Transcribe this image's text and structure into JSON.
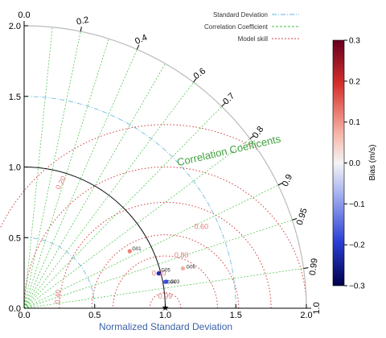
{
  "chart_data": {
    "type": "scatter",
    "subtype": "taylor-diagram",
    "title": "",
    "xlabel": "Normalized Standard Deviation",
    "corr_axis_label": "Correlation Coefficents",
    "std_range": [
      0,
      2.0
    ],
    "std_ticks": [
      "0.0",
      "0.5",
      "1.0",
      "1.5",
      "2.0"
    ],
    "corr_ticks": [
      "0.0",
      "0.2",
      "0.4",
      "0.6",
      "0.7",
      "0.8",
      "0.9",
      "0.95",
      "0.99",
      "1.0"
    ],
    "corr_values": [
      0.0,
      0.2,
      0.4,
      0.6,
      0.7,
      0.8,
      0.9,
      0.95,
      0.99,
      1.0
    ],
    "corr_gridlines": [
      0.1,
      0.2,
      0.3,
      0.4,
      0.5,
      0.6,
      0.7,
      0.8,
      0.9,
      0.95,
      0.99
    ],
    "std_dev_arcs": [
      0.5,
      1.0,
      1.5
    ],
    "skill_contours": [
      0.2,
      0.4,
      0.6,
      0.8,
      0.9,
      0.99
    ],
    "skill_labels": [
      {
        "value": 0.2,
        "text": "0.20"
      },
      {
        "value": 0.4,
        "text": "0.40"
      },
      {
        "value": 0.6,
        "text": "0.60"
      },
      {
        "value": 0.8,
        "text": "0.80"
      },
      {
        "value": 0.9,
        "text": "0.90"
      },
      {
        "value": 0.99,
        "text": "0.99"
      }
    ],
    "reference_marker": "★",
    "legend": {
      "placement": "top-right",
      "entries": [
        {
          "label": "Standard Deviation",
          "color": "#5fb6d9",
          "style": "dashdot"
        },
        {
          "label": "Correlation Coefficient",
          "color": "#3fbf3f",
          "style": "dashed"
        },
        {
          "label": "Model skill",
          "color": "#d43c3c",
          "style": "dashed"
        }
      ]
    },
    "points": [
      {
        "name": "G01",
        "std": 0.85,
        "corr": 0.88,
        "bias": 0.12
      },
      {
        "name": "G05",
        "std": 0.985,
        "corr": 0.968,
        "bias": -0.22
      },
      {
        "name": "G04",
        "std": 1.015,
        "corr": 0.983,
        "bias": -0.15
      },
      {
        "name": "G03",
        "std": 1.025,
        "corr": 0.983,
        "bias": -0.18
      },
      {
        "name": "G06",
        "std": 1.16,
        "corr": 0.97,
        "bias": 0.08
      }
    ],
    "colorbar": {
      "label": "Bias (m/s)",
      "range": [
        -0.3,
        0.3
      ],
      "ticks": [
        "0.3",
        "0.2",
        "0.1",
        "0.0",
        "−0.1",
        "−0.2",
        "−0.3"
      ]
    },
    "colors": {
      "std_arc": "#5fb6d9",
      "corr_line": "#3fbf3f",
      "skill": "#d43c3c",
      "outer_arc": "#bbbbbb",
      "xlabel": "#3a62a8",
      "corr_label": "#3fa13f"
    }
  }
}
